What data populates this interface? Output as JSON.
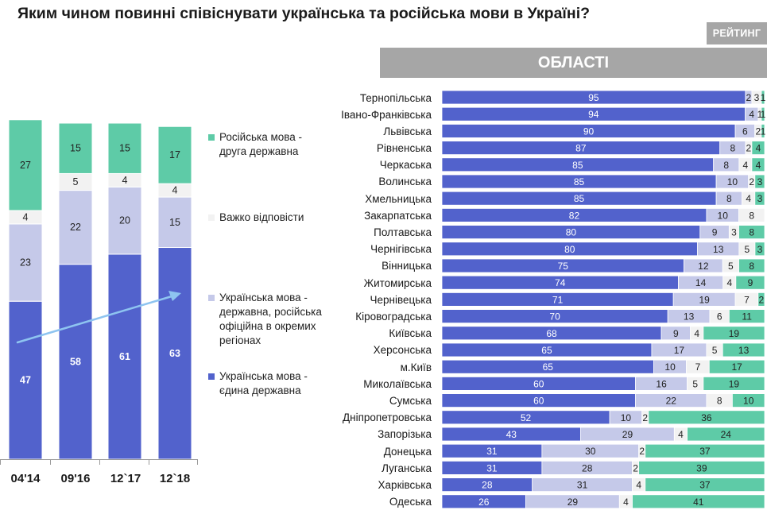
{
  "title": "Яким чином повинні співіснувати українська та російська мови в Україні?",
  "brand": "РЕЙТИНГ",
  "regions_header": "ОБЛАСТІ",
  "colors": {
    "single_state": "#5262cc",
    "state_with_regional": "#c5c9e9",
    "hard_to_say": "#f2f2f2",
    "russian_second": "#5ecba7",
    "trend_arrow": "#8ec4f0"
  },
  "legend": [
    {
      "key": "russian_second",
      "label": "Російська мова -\nдруга державна"
    },
    {
      "key": "hard_to_say",
      "label": "Важко відповісти"
    },
    {
      "key": "state_with_regional",
      "label": "Українська мова -\nдержавна, російська\nофіційна в окремих\nрегіонах"
    },
    {
      "key": "single_state",
      "label": "Українська мова -\nєдина державна"
    }
  ],
  "chart_data": [
    {
      "type": "bar",
      "stacked": true,
      "orientation": "vertical",
      "categories": [
        "04'14",
        "09'16",
        "12`17",
        "12`18"
      ],
      "series": [
        {
          "key": "single_state",
          "name": "Українська мова - єдина державна",
          "values": [
            47,
            58,
            61,
            63
          ]
        },
        {
          "key": "state_with_regional",
          "name": "Українська мова - державна, російська офіційна в окремих регіонах",
          "values": [
            23,
            22,
            20,
            15
          ]
        },
        {
          "key": "hard_to_say",
          "name": "Важко відповісти",
          "values": [
            4,
            5,
            4,
            4
          ]
        },
        {
          "key": "russian_second",
          "name": "Російська мова - друга державна",
          "values": [
            27,
            15,
            15,
            17
          ]
        }
      ],
      "ylim": [
        0,
        100
      ],
      "trend_arrow": true
    },
    {
      "type": "bar",
      "stacked": true,
      "orientation": "horizontal",
      "categories": [
        "Тернопільська",
        "Івано-Франківська",
        "Львівська",
        "Рівненська",
        "Черкаська",
        "Волинська",
        "Хмельницька",
        "Закарпатська",
        "Полтавська",
        "Чернігівська",
        "Вінницька",
        "Житомирська",
        "Чернівецька",
        "Кіровоградська",
        "Київська",
        "Херсонська",
        "м.Київ",
        "Миколаївська",
        "Сумська",
        "Дніпропетровська",
        "Запорізька",
        "Донецька",
        "Луганська",
        "Харківська",
        "Одеська"
      ],
      "series": [
        {
          "key": "single_state",
          "values": [
            95,
            94,
            90,
            87,
            85,
            85,
            85,
            82,
            80,
            80,
            75,
            74,
            71,
            70,
            68,
            65,
            65,
            60,
            60,
            52,
            43,
            31,
            31,
            28,
            26
          ]
        },
        {
          "key": "state_with_regional",
          "values": [
            2,
            4,
            6,
            8,
            8,
            10,
            8,
            10,
            9,
            13,
            12,
            14,
            19,
            13,
            9,
            17,
            10,
            16,
            22,
            10,
            29,
            30,
            28,
            31,
            29
          ]
        },
        {
          "key": "hard_to_say",
          "values": [
            3,
            1,
            2,
            2,
            4,
            2,
            4,
            8,
            3,
            5,
            5,
            4,
            7,
            6,
            4,
            5,
            7,
            5,
            8,
            2,
            4,
            2,
            2,
            4,
            4
          ]
        },
        {
          "key": "russian_second",
          "values": [
            1,
            1,
            1,
            4,
            4,
            3,
            3,
            0,
            8,
            3,
            8,
            9,
            2,
            11,
            19,
            13,
            17,
            19,
            10,
            36,
            24,
            37,
            39,
            37,
            41
          ]
        }
      ],
      "xlim": [
        0,
        100
      ]
    }
  ]
}
